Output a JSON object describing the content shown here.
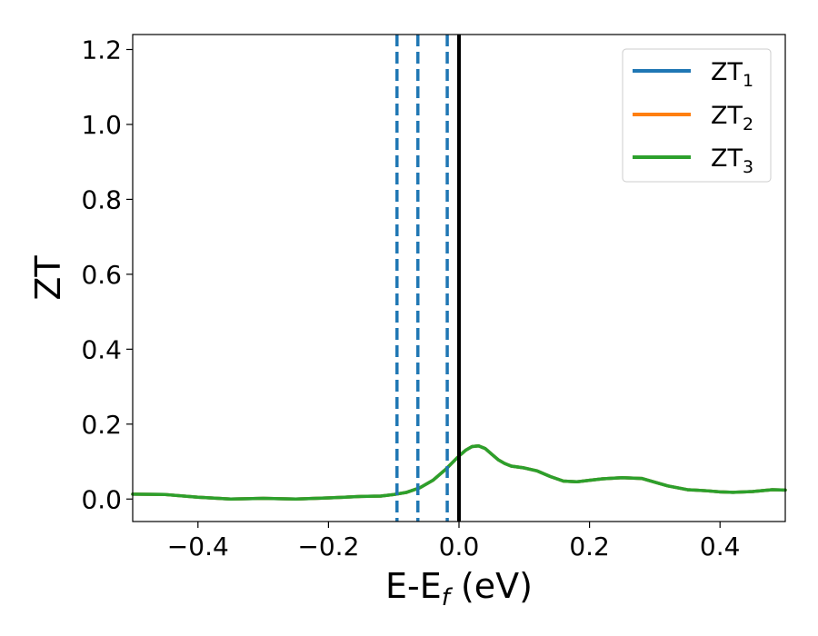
{
  "chart_data": {
    "type": "line",
    "xlabel": "E-E_f (eV)",
    "xlabel_parts": {
      "main": "E-E",
      "sub": "f",
      "tail": " (eV)"
    },
    "ylabel": "ZT",
    "xlim": [
      -0.5,
      0.5
    ],
    "ylim": [
      -0.06,
      1.24
    ],
    "xticks": [
      -0.4,
      -0.2,
      0.0,
      0.2,
      0.4
    ],
    "xtick_labels": [
      "−0.4",
      "−0.2",
      "0.0",
      "0.2",
      "0.4"
    ],
    "yticks": [
      0.0,
      0.2,
      0.4,
      0.6,
      0.8,
      1.0,
      1.2
    ],
    "ytick_labels": [
      "0.0",
      "0.2",
      "0.4",
      "0.6",
      "0.8",
      "1.0",
      "1.2"
    ],
    "grid": false,
    "legend_position": "top-right",
    "x": [
      -0.5,
      -0.45,
      -0.4,
      -0.35,
      -0.3,
      -0.25,
      -0.2,
      -0.15,
      -0.12,
      -0.1,
      -0.08,
      -0.06,
      -0.04,
      -0.02,
      0.0,
      0.01,
      0.02,
      0.03,
      0.04,
      0.05,
      0.06,
      0.07,
      0.08,
      0.1,
      0.12,
      0.14,
      0.16,
      0.18,
      0.2,
      0.22,
      0.25,
      0.28,
      0.3,
      0.32,
      0.35,
      0.38,
      0.4,
      0.42,
      0.45,
      0.48,
      0.5
    ],
    "series": [
      {
        "name": "ZT_1",
        "label": {
          "main": "ZT",
          "sub": "1"
        },
        "color": "#1f77b4",
        "y": [
          0.013,
          0.012,
          0.005,
          0.0,
          0.002,
          0.0,
          0.003,
          0.007,
          0.008,
          0.012,
          0.018,
          0.03,
          0.05,
          0.08,
          0.115,
          0.13,
          0.14,
          0.142,
          0.135,
          0.12,
          0.105,
          0.095,
          0.088,
          0.083,
          0.075,
          0.06,
          0.048,
          0.046,
          0.05,
          0.054,
          0.057,
          0.055,
          0.045,
          0.035,
          0.025,
          0.022,
          0.019,
          0.018,
          0.02,
          0.025,
          0.024
        ]
      },
      {
        "name": "ZT_2",
        "label": {
          "main": "ZT",
          "sub": "2"
        },
        "color": "#ff7f0e",
        "y": [
          0.013,
          0.012,
          0.005,
          0.0,
          0.002,
          0.0,
          0.003,
          0.007,
          0.008,
          0.012,
          0.018,
          0.03,
          0.05,
          0.08,
          0.115,
          0.13,
          0.14,
          0.142,
          0.135,
          0.12,
          0.105,
          0.095,
          0.088,
          0.083,
          0.075,
          0.06,
          0.048,
          0.046,
          0.05,
          0.054,
          0.057,
          0.055,
          0.045,
          0.035,
          0.025,
          0.022,
          0.019,
          0.018,
          0.02,
          0.025,
          0.024
        ]
      },
      {
        "name": "ZT_3",
        "label": {
          "main": "ZT",
          "sub": "3"
        },
        "color": "#2ca02c",
        "y": [
          0.013,
          0.012,
          0.005,
          0.0,
          0.002,
          0.0,
          0.003,
          0.007,
          0.008,
          0.012,
          0.018,
          0.03,
          0.05,
          0.08,
          0.115,
          0.13,
          0.14,
          0.142,
          0.135,
          0.12,
          0.105,
          0.095,
          0.088,
          0.083,
          0.075,
          0.06,
          0.048,
          0.046,
          0.05,
          0.054,
          0.057,
          0.055,
          0.045,
          0.035,
          0.025,
          0.022,
          0.019,
          0.018,
          0.02,
          0.025,
          0.024
        ]
      }
    ],
    "vlines": [
      {
        "x": -0.095,
        "style": "dashed",
        "color": "#1f77b4"
      },
      {
        "x": -0.063,
        "style": "dashed",
        "color": "#1f77b4"
      },
      {
        "x": -0.018,
        "style": "dashed",
        "color": "#1f77b4"
      },
      {
        "x": 0.0,
        "style": "solid",
        "color": "#000000"
      }
    ]
  }
}
